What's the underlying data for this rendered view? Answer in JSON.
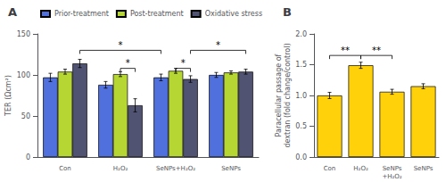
{
  "chart_data": [
    {
      "type": "bar",
      "title": "A",
      "categories": [
        "Con",
        "H₂O₂",
        "SeNPs+H₂O₂",
        "SeNPs"
      ],
      "series": [
        {
          "name": "Prior-treatment",
          "values": [
            97,
            88,
            97,
            100
          ],
          "errors": [
            5,
            4,
            4,
            3
          ]
        },
        {
          "name": "Post-treatment",
          "values": [
            104,
            101,
            105,
            103
          ],
          "errors": [
            3,
            3,
            3,
            2
          ]
        },
        {
          "name": "Oxidative stress",
          "values": [
            114,
            63,
            95,
            104
          ],
          "errors": [
            5,
            8,
            4,
            3
          ]
        }
      ],
      "ylabel": "TER (Ωcm²)",
      "ylim": [
        0,
        150
      ],
      "yticks": [
        0,
        50,
        100,
        150
      ],
      "grid": false,
      "legend": "top",
      "annotations": [
        {
          "text": "*",
          "y": 130,
          "from": {
            "category": "Con",
            "series": "Oxidative stress"
          },
          "to": {
            "category": "SeNPs+H₂O₂",
            "series": "Prior-treatment"
          }
        },
        {
          "text": "*",
          "y": 130,
          "from": {
            "category": "SeNPs+H₂O₂",
            "series": "Oxidative stress"
          },
          "to": {
            "category": "SeNPs",
            "series": "Oxidative stress"
          }
        },
        {
          "text": "*",
          "y": 108,
          "from": {
            "category": "H₂O₂",
            "series": "Post-treatment"
          },
          "to": {
            "category": "H₂O₂",
            "series": "Oxidative stress"
          }
        },
        {
          "text": "*",
          "y": 108,
          "from": {
            "category": "SeNPs+H₂O₂",
            "series": "Post-treatment"
          },
          "to": {
            "category": "SeNPs+H₂O₂",
            "series": "Oxidative stress"
          }
        }
      ]
    },
    {
      "type": "bar",
      "title": "B",
      "categories": [
        "Con",
        "H₂O₂",
        "SeNPs\n+H₂O₂",
        "SeNPs"
      ],
      "values": [
        1.0,
        1.49,
        1.06,
        1.15
      ],
      "errors": [
        0.05,
        0.05,
        0.04,
        0.04
      ],
      "ylabel": "Paracellular passage of\ndextran (fold change/control)",
      "ylim": [
        0.0,
        2.0
      ],
      "yticks": [
        {
          "value": 0.0,
          "label": "0.0"
        },
        {
          "value": 0.5,
          "label": "0.5"
        },
        {
          "value": 1.0,
          "label": "1.0"
        },
        {
          "value": 1.5,
          "label": "1.5"
        },
        {
          "value": 2.0,
          "label": "2.0"
        }
      ],
      "grid": false,
      "annotations": [
        {
          "text": "**",
          "y": 1.65,
          "from": {
            "category": "Con"
          },
          "to": {
            "category": "H₂O₂"
          }
        },
        {
          "text": "**",
          "y": 1.65,
          "from": {
            "category": "H₂O₂"
          },
          "to": {
            "category": "SeNPs\n+H₂O₂"
          }
        }
      ]
    }
  ]
}
